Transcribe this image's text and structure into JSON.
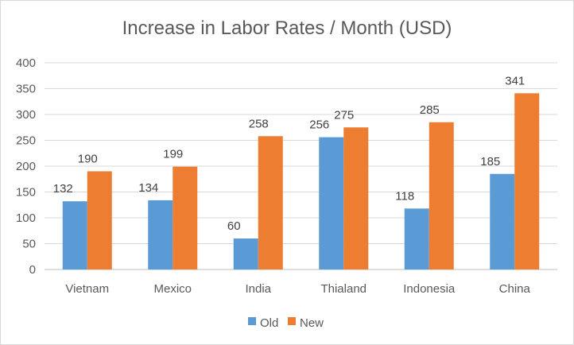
{
  "chart_data": {
    "type": "bar",
    "title": "Increase in Labor Rates / Month (USD)",
    "xlabel": "",
    "ylabel": "",
    "categories": [
      "Vietnam",
      "Mexico",
      "India",
      "Thialand",
      "Indonesia",
      "China"
    ],
    "series": [
      {
        "name": "Old",
        "values": [
          132,
          134,
          60,
          256,
          118,
          185
        ],
        "color": "#5b9bd5"
      },
      {
        "name": "New",
        "values": [
          190,
          199,
          258,
          275,
          285,
          341
        ],
        "color": "#ed7d31"
      }
    ],
    "ylim": [
      0,
      400
    ],
    "yticks": [
      "0",
      "50",
      "100",
      "150",
      "200",
      "250",
      "300",
      "350",
      "400"
    ],
    "grid": true,
    "data_labels": true,
    "legend_position": "bottom"
  }
}
